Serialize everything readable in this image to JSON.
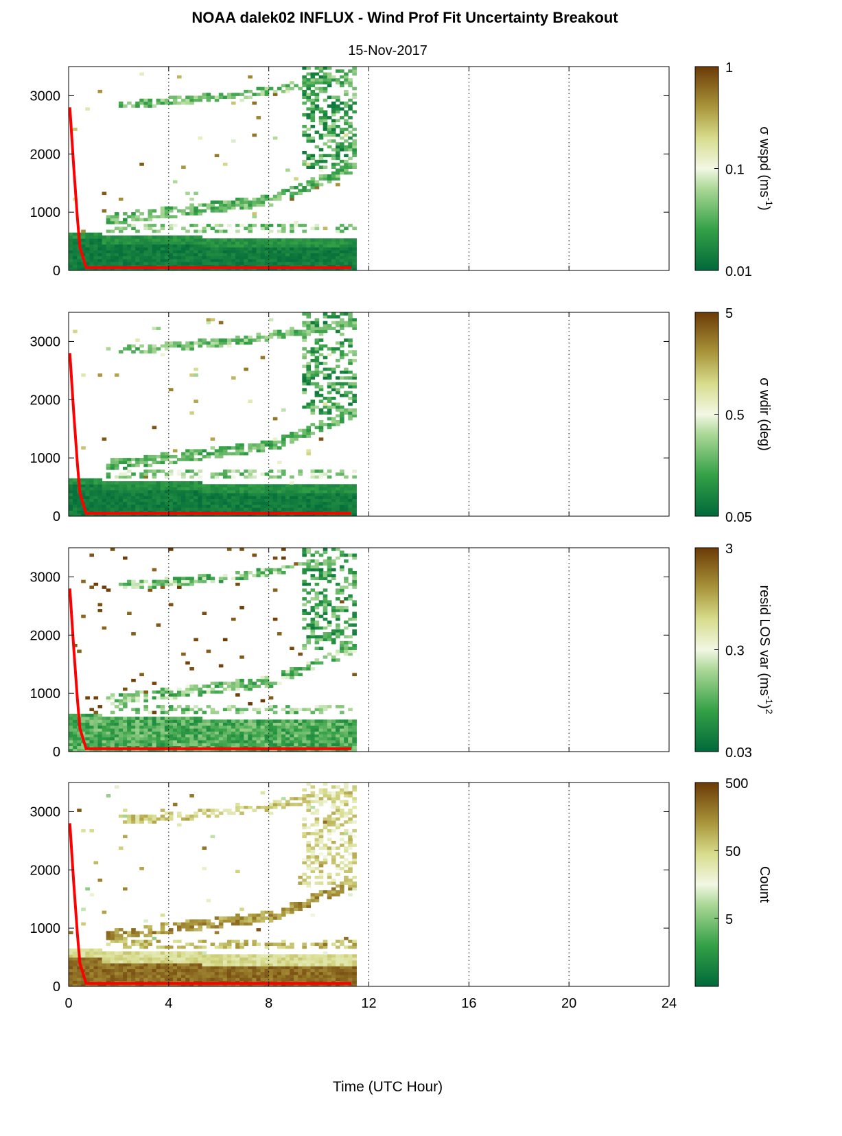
{
  "title": "NOAA dalek02 INFLUX - Wind Prof Fit Uncertainty Breakout",
  "subtitle": "15-Nov-2017",
  "colors": {
    "low": "#00693a",
    "mid": "#f2f7e4",
    "high": "#6b3a06",
    "boundary_line": "#ff0000"
  },
  "chart_data": [
    {
      "type": "heatmap",
      "name": "wspd",
      "ylabel": "",
      "ylim": [
        0,
        3500
      ],
      "yticks": [
        "0",
        "1000",
        "2000",
        "3000"
      ],
      "colorbar": {
        "label_main": "σ wspd (ms",
        "label_sup": "-1",
        "label_end": ")",
        "scale": "log",
        "ticks": [
          "0.01",
          "0.1",
          "1"
        ],
        "range": [
          0.01,
          1
        ]
      }
    },
    {
      "type": "heatmap",
      "name": "wdir",
      "ylabel": "",
      "ylim": [
        0,
        3500
      ],
      "yticks": [
        "0",
        "1000",
        "2000",
        "3000"
      ],
      "colorbar": {
        "label_main": "σ wdir (deg)",
        "label_sup": "",
        "label_end": "",
        "scale": "log",
        "ticks": [
          "0.05",
          "0.5",
          "5"
        ],
        "range": [
          0.05,
          5
        ]
      }
    },
    {
      "type": "heatmap",
      "name": "resid",
      "ylabel": "",
      "ylim": [
        0,
        3500
      ],
      "yticks": [
        "0",
        "1000",
        "2000",
        "3000"
      ],
      "colorbar": {
        "label_main": "resid LOS var (ms",
        "label_sup": "-1",
        "label_end": ")",
        "label_sup2": "2",
        "scale": "log",
        "ticks": [
          "0.03",
          "0.3",
          "3"
        ],
        "range": [
          0.03,
          3
        ]
      }
    },
    {
      "type": "heatmap",
      "name": "count",
      "ylabel": "",
      "ylim": [
        0,
        3500
      ],
      "yticks": [
        "0",
        "1000",
        "2000",
        "3000"
      ],
      "colorbar": {
        "label_main": "Count",
        "label_sup": "",
        "label_end": "",
        "scale": "log",
        "ticks": [
          "5",
          "50",
          "500"
        ],
        "range": [
          0.5,
          500
        ]
      }
    }
  ],
  "xaxis": {
    "label": "Time (UTC Hour)",
    "range": [
      0,
      24
    ],
    "ticks": [
      "0",
      "4",
      "8",
      "12",
      "16",
      "20",
      "24"
    ],
    "grid": "dotted vertical"
  },
  "boundary_layer_line": {
    "points": [
      [
        0.05,
        2800
      ],
      [
        0.2,
        1800
      ],
      [
        0.35,
        900
      ],
      [
        0.45,
        400
      ],
      [
        0.7,
        50
      ],
      [
        11.3,
        50
      ]
    ]
  }
}
